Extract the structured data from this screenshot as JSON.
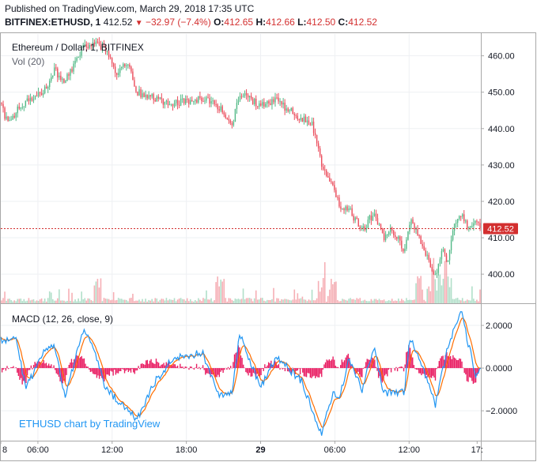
{
  "header": {
    "published": "Published on TradingView.com, March 29, 2018 17:35 UTC",
    "symbol": "BITFINEX:ETHUSD, 1",
    "last": "412.52",
    "change": "−32.97 (−7.4%)",
    "o_label": "O:",
    "o": "412.65",
    "h_label": "H:",
    "h": "412.66",
    "l_label": "L:",
    "l": "412.50",
    "c_label": "C:",
    "c": "412.52"
  },
  "main_pane": {
    "title": "Ethereum / Dollar, 1, BITFINEX",
    "vol_label": "Vol (20)",
    "price_label": "412.52"
  },
  "macd_pane": {
    "title": "MACD (12, 26, close, 9)"
  },
  "watermark": "ETHUSD chart by TradingView",
  "colors": {
    "up": "#53b987",
    "down": "#eb4d5c",
    "macd": "#2196f3",
    "signal": "#ff6d00",
    "hist": "#e91e63",
    "price_line": "#d32f2f"
  },
  "chart_data": [
    {
      "type": "candlestick",
      "title": "Ethereum / Dollar, 1, BITFINEX",
      "ylim": [
        392,
        466
      ],
      "yticks": [
        "460.00",
        "450.00",
        "440.00",
        "430.00",
        "420.00",
        "410.00",
        "400.00"
      ],
      "ytick_values": [
        460,
        450,
        440,
        430,
        420,
        410,
        400
      ],
      "xticks": [
        "8",
        "06:00",
        "12:00",
        "18:00",
        "29",
        "06:00",
        "12:00",
        "17:"
      ],
      "xtick_hours": [
        3,
        6,
        12,
        18,
        24,
        30,
        36,
        41.5
      ],
      "x_range_hours": [
        3,
        41.8
      ],
      "last_price": 412.52,
      "price_path": [
        {
          "t": 3.0,
          "p": 447
        },
        {
          "t": 3.6,
          "p": 441
        },
        {
          "t": 4.5,
          "p": 446
        },
        {
          "t": 5.5,
          "p": 448
        },
        {
          "t": 6.6,
          "p": 451
        },
        {
          "t": 7.3,
          "p": 456
        },
        {
          "t": 8.2,
          "p": 453
        },
        {
          "t": 9.6,
          "p": 462
        },
        {
          "t": 10.5,
          "p": 464
        },
        {
          "t": 11.4,
          "p": 462
        },
        {
          "t": 12.4,
          "p": 455
        },
        {
          "t": 13.3,
          "p": 458
        },
        {
          "t": 14.0,
          "p": 450
        },
        {
          "t": 15.5,
          "p": 448
        },
        {
          "t": 17.0,
          "p": 447
        },
        {
          "t": 19.3,
          "p": 448
        },
        {
          "t": 20.7,
          "p": 446
        },
        {
          "t": 21.7,
          "p": 441
        },
        {
          "t": 22.3,
          "p": 450
        },
        {
          "t": 24.0,
          "p": 446
        },
        {
          "t": 25.3,
          "p": 448
        },
        {
          "t": 26.3,
          "p": 445
        },
        {
          "t": 27.3,
          "p": 443
        },
        {
          "t": 28.2,
          "p": 441
        },
        {
          "t": 28.9,
          "p": 430
        },
        {
          "t": 29.8,
          "p": 425
        },
        {
          "t": 30.4,
          "p": 419
        },
        {
          "t": 31.1,
          "p": 418
        },
        {
          "t": 32.2,
          "p": 412
        },
        {
          "t": 33.2,
          "p": 417
        },
        {
          "t": 33.9,
          "p": 410
        },
        {
          "t": 34.6,
          "p": 412
        },
        {
          "t": 35.6,
          "p": 407
        },
        {
          "t": 36.1,
          "p": 415
        },
        {
          "t": 37.0,
          "p": 408
        },
        {
          "t": 37.7,
          "p": 403
        },
        {
          "t": 38.1,
          "p": 399
        },
        {
          "t": 38.7,
          "p": 408
        },
        {
          "t": 39.1,
          "p": 402
        },
        {
          "t": 39.6,
          "p": 414
        },
        {
          "t": 40.2,
          "p": 416
        },
        {
          "t": 40.8,
          "p": 413
        },
        {
          "t": 41.4,
          "p": 415
        },
        {
          "t": 41.8,
          "p": 412.5
        }
      ],
      "volume_spikes_hours": [
        10.8,
        20.7,
        28.9,
        29.8,
        36.8,
        37.7,
        38.1,
        38.7,
        39.1
      ]
    },
    {
      "type": "line",
      "title": "MACD (12, 26, close, 9)",
      "ylim": [
        -3.4,
        3.0
      ],
      "yticks": [
        "2.0000",
        "0.0000",
        "−2.0000"
      ],
      "ytick_values": [
        2,
        0,
        -2
      ],
      "series": [
        {
          "name": "MACD",
          "color": "#2196f3"
        },
        {
          "name": "Signal",
          "color": "#ff6d00"
        },
        {
          "name": "Histogram",
          "color": "#e91e63"
        }
      ],
      "macd_extremes": [
        {
          "t": 4.3,
          "v": 1.3
        },
        {
          "t": 5.0,
          "v": -1.0
        },
        {
          "t": 6.6,
          "v": 0.9
        },
        {
          "t": 7.3,
          "v": 1.1
        },
        {
          "t": 8.2,
          "v": -1.4
        },
        {
          "t": 9.6,
          "v": 1.8
        },
        {
          "t": 10.5,
          "v": 1.0
        },
        {
          "t": 11.4,
          "v": -0.9
        },
        {
          "t": 12.4,
          "v": -1.5
        },
        {
          "t": 14.0,
          "v": -2.4
        },
        {
          "t": 15.5,
          "v": -0.6
        },
        {
          "t": 17.0,
          "v": 0.5
        },
        {
          "t": 19.3,
          "v": 0.7
        },
        {
          "t": 20.7,
          "v": -1.3
        },
        {
          "t": 21.7,
          "v": -1.1
        },
        {
          "t": 22.3,
          "v": 1.6
        },
        {
          "t": 24.0,
          "v": -0.9
        },
        {
          "t": 25.3,
          "v": 0.5
        },
        {
          "t": 27.3,
          "v": -0.6
        },
        {
          "t": 28.9,
          "v": -3.1
        },
        {
          "t": 29.8,
          "v": -1.2
        },
        {
          "t": 30.4,
          "v": -1.4
        },
        {
          "t": 31.1,
          "v": 0.4
        },
        {
          "t": 32.2,
          "v": -1.0
        },
        {
          "t": 33.2,
          "v": 1.0
        },
        {
          "t": 33.9,
          "v": -1.2
        },
        {
          "t": 35.6,
          "v": -1.1
        },
        {
          "t": 36.1,
          "v": 1.5
        },
        {
          "t": 37.7,
          "v": -0.9
        },
        {
          "t": 38.1,
          "v": -1.8
        },
        {
          "t": 39.1,
          "v": 0.9
        },
        {
          "t": 40.2,
          "v": 2.7
        },
        {
          "t": 40.8,
          "v": 1.1
        },
        {
          "t": 41.4,
          "v": -0.3
        },
        {
          "t": 41.8,
          "v": 0.1
        }
      ]
    }
  ]
}
